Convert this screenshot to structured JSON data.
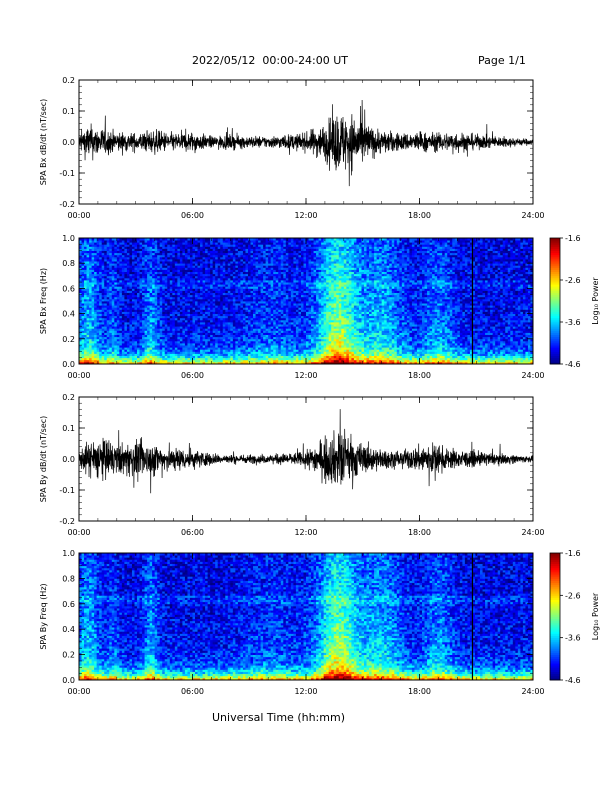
{
  "header": {
    "title": "2022/05/12  00:00-24:00 UT",
    "page": "Page 1/1"
  },
  "xlabel": "Universal Time (hh:mm)",
  "chart_data": [
    {
      "type": "line",
      "ylabel": "SPA Bx dB/dt (nT/sec)",
      "xlim": [
        0,
        24
      ],
      "ylim": [
        -0.2,
        0.2
      ],
      "xticks": [
        "00:00",
        "06:00",
        "12:00",
        "18:00",
        "24:00"
      ],
      "yticks": [
        "-0.2",
        "-0.1",
        "0.0",
        "0.1",
        "0.2"
      ],
      "envelope": {
        "hours": [
          0,
          0.5,
          1,
          2,
          3,
          4,
          5,
          6,
          7,
          8,
          9,
          10,
          11,
          12,
          12.5,
          13,
          13.5,
          14,
          14.5,
          15,
          15.5,
          16,
          17,
          18,
          19,
          20,
          21,
          22,
          23,
          24
        ],
        "amplitude": [
          0.06,
          0.12,
          0.1,
          0.07,
          0.06,
          0.08,
          0.06,
          0.07,
          0.04,
          0.05,
          0.04,
          0.04,
          0.05,
          0.06,
          0.1,
          0.12,
          0.2,
          0.2,
          0.19,
          0.16,
          0.1,
          0.08,
          0.06,
          0.07,
          0.06,
          0.07,
          0.05,
          0.04,
          0.03,
          0.02
        ]
      }
    },
    {
      "type": "heatmap",
      "ylabel": "SPA Bx Freq (Hz)",
      "colorbar_label": "Log₁₀ Power",
      "xlim": [
        0,
        24
      ],
      "ylim": [
        0,
        1
      ],
      "clim": [
        -4.6,
        -1.6
      ],
      "xticks": [
        "00:00",
        "06:00",
        "12:00",
        "18:00",
        "24:00"
      ],
      "yticks": [
        "0.0",
        "0.2",
        "0.4",
        "0.6",
        "0.8",
        "1.0"
      ],
      "cticks": [
        "-1.6",
        "-2.6",
        "-3.6",
        "-4.6"
      ]
    },
    {
      "type": "line",
      "ylabel": "SPA By dB/dt (nT/sec)",
      "xlim": [
        0,
        24
      ],
      "ylim": [
        -0.2,
        0.2
      ],
      "xticks": [
        "00:00",
        "06:00",
        "12:00",
        "18:00",
        "24:00"
      ],
      "yticks": [
        "-0.2",
        "-0.1",
        "0.0",
        "0.1",
        "0.2"
      ],
      "envelope": {
        "hours": [
          0,
          0.5,
          1,
          2,
          3,
          4,
          5,
          6,
          7,
          8,
          9,
          10,
          11,
          12,
          12.5,
          13,
          13.5,
          14,
          14.5,
          15,
          16,
          17,
          18,
          18.5,
          19,
          20,
          21,
          22,
          23,
          24
        ],
        "amplitude": [
          0.05,
          0.12,
          0.15,
          0.1,
          0.12,
          0.11,
          0.08,
          0.07,
          0.04,
          0.03,
          0.03,
          0.03,
          0.04,
          0.05,
          0.1,
          0.14,
          0.18,
          0.2,
          0.14,
          0.1,
          0.07,
          0.05,
          0.09,
          0.12,
          0.09,
          0.06,
          0.05,
          0.04,
          0.03,
          0.02
        ]
      }
    },
    {
      "type": "heatmap",
      "ylabel": "SPA By Freq (Hz)",
      "colorbar_label": "Log₁₀ Power",
      "xlim": [
        0,
        24
      ],
      "ylim": [
        0,
        1
      ],
      "clim": [
        -4.6,
        -1.6
      ],
      "xticks": [
        "00:00",
        "06:00",
        "12:00",
        "18:00",
        "24:00"
      ],
      "yticks": [
        "0.0",
        "0.2",
        "0.4",
        "0.6",
        "0.8",
        "1.0"
      ],
      "cticks": [
        "-1.6",
        "-2.6",
        "-3.6",
        "-4.6"
      ]
    }
  ]
}
